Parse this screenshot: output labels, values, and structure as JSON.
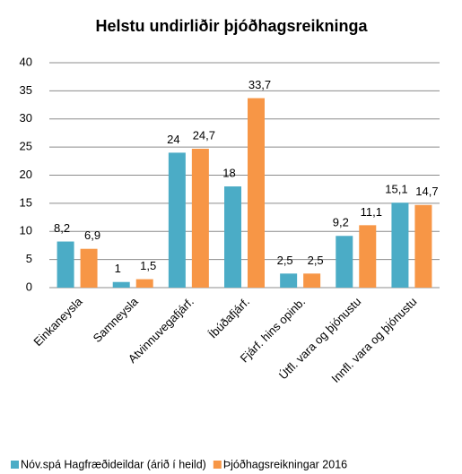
{
  "chart_data": {
    "type": "bar",
    "title": "Helstu undirliðir þjóðhagsreikninga",
    "categories": [
      "Einkaneysla",
      "Samneysla",
      "Atvinnuvegafjárf.",
      "Íbúðafjárf.",
      "Fjárf. hins opinb.",
      "Útfl. vara og þjónustu",
      "Innfl. vara og þjónustu"
    ],
    "series": [
      {
        "name": "Nóv.spá Hagfræðideildar (árið í heild)",
        "color": "#4bacc6",
        "values": [
          8.2,
          1,
          24,
          18,
          2.5,
          9.2,
          15.1
        ],
        "value_labels": [
          "8,2",
          "1",
          "24",
          "18",
          "2,5",
          "9,2",
          "15,1"
        ]
      },
      {
        "name": "Þjóðhagsreikningar 2016",
        "color": "#f79646",
        "values": [
          6.9,
          1.5,
          24.7,
          33.7,
          2.5,
          11.1,
          14.7
        ],
        "value_labels": [
          "6,9",
          "1,5",
          "24,7",
          "33,7",
          "2,5",
          "11,1",
          "14,7"
        ]
      }
    ],
    "ylim": [
      0,
      40
    ],
    "yticks": [
      0,
      5,
      10,
      15,
      20,
      25,
      30,
      35,
      40
    ],
    "grid": true,
    "legend": "bottom"
  }
}
